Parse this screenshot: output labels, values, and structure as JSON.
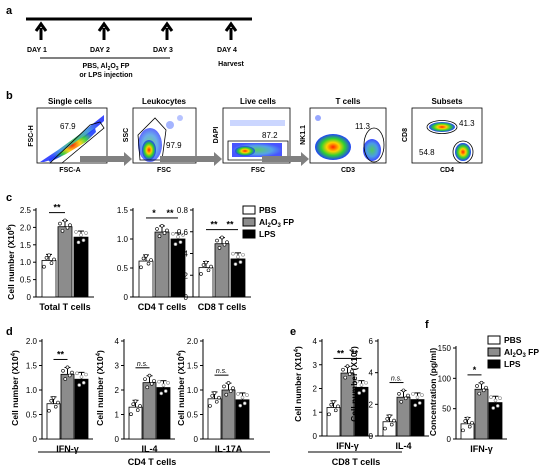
{
  "figure": {
    "panels": {
      "a": "a",
      "b": "b",
      "c": "c",
      "d": "d",
      "e": "e",
      "f": "f"
    },
    "timeline": {
      "days": [
        "DAY 1",
        "DAY 2",
        "DAY 3",
        "DAY 4"
      ],
      "injection_line1": "PBS, Al",
      "injection_sub": "2",
      "injection_mid": "O",
      "injection_sub2": "3",
      "injection_line1_end": " FP",
      "injection_line2": "or LPS injection",
      "harvest": "Harvest"
    },
    "gating": [
      {
        "title": "Single cells",
        "xaxis": "FSC-A",
        "yaxis": "FSC-H",
        "value": "67.9"
      },
      {
        "title": "Leukocytes",
        "xaxis": "FSC",
        "yaxis": "SSC",
        "value": "97.9"
      },
      {
        "title": "Live cells",
        "xaxis": "FSC",
        "yaxis": "DAPI",
        "value": "87.2"
      },
      {
        "title": "T cells",
        "xaxis": "CD3",
        "yaxis": "NK1.1",
        "value": "11.3"
      },
      {
        "title": "Subsets",
        "xaxis": "CD4",
        "yaxis": "CD8",
        "value_top": "41.3",
        "value_bottom": "54.8"
      }
    ],
    "legend": {
      "pbs": "PBS",
      "fp_pre": "Al",
      "fp_s1": "2",
      "fp_mid": "O",
      "fp_s2": "3",
      "fp_post": " FP",
      "lps": "LPS",
      "colors": {
        "pbs": "#ffffff",
        "fp": "#8c8c8c",
        "lps": "#000000"
      }
    },
    "sig": {
      "two": "**",
      "one": "*",
      "ns": "n.s."
    },
    "ylabels": {
      "cells_main": "Cell number (X10",
      "cells_exp": "6",
      "cells_sub_main": "Cell number (X10",
      "cells_sub_exp": "4",
      "cells_sub_suffix": ")",
      "conc": "Concentration (pg/ml)"
    },
    "group_labels": {
      "cd4": "CD4 T cells",
      "cd8": "CD8 T cells"
    }
  },
  "chart_data": [
    {
      "panel": "c",
      "type": "bar",
      "ylabel": "Cell number (X10^6)",
      "ylim": [
        0,
        2.5
      ],
      "yticks": [
        "0",
        "0.5",
        "1.0",
        "1.5",
        "2.0",
        "2.5"
      ],
      "categories": [
        "Total T cells"
      ],
      "series": [
        {
          "name": "PBS",
          "values": [
            1.05
          ]
        },
        {
          "name": "Al2O3 FP",
          "values": [
            2.02
          ]
        },
        {
          "name": "LPS",
          "values": [
            1.72
          ]
        }
      ],
      "sig": [
        "**"
      ]
    },
    {
      "panel": "c",
      "type": "bar",
      "ylim": [
        0,
        1.5
      ],
      "yticks": [
        "0",
        "0.5",
        "1.0",
        "1.5"
      ],
      "categories": [
        "CD4 T cells"
      ],
      "series": [
        {
          "name": "PBS",
          "values": [
            0.62
          ]
        },
        {
          "name": "Al2O3 FP",
          "values": [
            1.12
          ]
        },
        {
          "name": "LPS",
          "values": [
            1.0
          ]
        }
      ],
      "sig": [
        "*",
        "**"
      ]
    },
    {
      "panel": "c",
      "type": "bar",
      "ylim": [
        0,
        0.8
      ],
      "yticks": [
        "0",
        "0.2",
        "0.4",
        "0.6",
        "0.8"
      ],
      "categories": [
        "CD8 T cells"
      ],
      "series": [
        {
          "name": "PBS",
          "values": [
            0.27
          ]
        },
        {
          "name": "Al2O3 FP",
          "values": [
            0.49
          ]
        },
        {
          "name": "LPS",
          "values": [
            0.35
          ]
        }
      ],
      "sig": [
        "**",
        "**"
      ]
    },
    {
      "panel": "d",
      "type": "bar",
      "ylabel": "Cell number (X10^4)",
      "ylim": [
        0,
        2.0
      ],
      "yticks": [
        "0",
        "0.5",
        "1.0",
        "1.5",
        "2.0"
      ],
      "categories": [
        "IFN-γ"
      ],
      "series": [
        {
          "name": "PBS",
          "values": [
            0.72
          ]
        },
        {
          "name": "Al2O3 FP",
          "values": [
            1.32
          ]
        },
        {
          "name": "LPS",
          "values": [
            1.22
          ]
        }
      ],
      "sig": [
        "**"
      ]
    },
    {
      "panel": "d",
      "type": "bar",
      "ylabel": "Cell number (X10^4)",
      "ylim": [
        0,
        4
      ],
      "yticks": [
        "0",
        "1",
        "2",
        "3",
        "4"
      ],
      "categories": [
        "IL-4"
      ],
      "series": [
        {
          "name": "PBS",
          "values": [
            1.3
          ]
        },
        {
          "name": "Al2O3 FP",
          "values": [
            2.3
          ]
        },
        {
          "name": "LPS",
          "values": [
            2.1
          ]
        }
      ],
      "sig": [
        "n.s."
      ]
    },
    {
      "panel": "d",
      "type": "bar",
      "ylabel": "Cell number (X10^4)",
      "ylim": [
        0,
        2.0
      ],
      "yticks": [
        "0",
        "0.5",
        "1.0",
        "1.5",
        "2.0"
      ],
      "categories": [
        "IL-17A"
      ],
      "series": [
        {
          "name": "PBS",
          "values": [
            0.82
          ]
        },
        {
          "name": "Al2O3 FP",
          "values": [
            1.0
          ]
        },
        {
          "name": "LPS",
          "values": [
            0.8
          ]
        }
      ],
      "sig": [
        "n.s."
      ]
    },
    {
      "panel": "e",
      "type": "bar",
      "ylabel": "Cell number (X10^4)",
      "ylim": [
        0,
        4
      ],
      "yticks": [
        "0",
        "1",
        "2",
        "3",
        "4"
      ],
      "categories": [
        "IFN-γ"
      ],
      "series": [
        {
          "name": "PBS",
          "values": [
            1.2
          ]
        },
        {
          "name": "Al2O3 FP",
          "values": [
            2.65
          ]
        },
        {
          "name": "LPS",
          "values": [
            2.05
          ]
        }
      ],
      "sig": [
        "**",
        "**"
      ]
    },
    {
      "panel": "e",
      "type": "bar",
      "ylabel": "Cell number (X10^3)",
      "ylim": [
        0,
        6
      ],
      "yticks": [
        "0",
        "2",
        "4",
        "6"
      ],
      "categories": [
        "IL-4"
      ],
      "series": [
        {
          "name": "PBS",
          "values": [
            0.9
          ]
        },
        {
          "name": "Al2O3 FP",
          "values": [
            2.45
          ]
        },
        {
          "name": "LPS",
          "values": [
            2.3
          ]
        }
      ],
      "sig": [
        "n.s."
      ]
    },
    {
      "panel": "f",
      "type": "bar",
      "ylabel": "Concentration (pg/ml)",
      "ylim": [
        0,
        150
      ],
      "yticks": [
        "0",
        "50",
        "100",
        "150"
      ],
      "categories": [
        "IFN-γ"
      ],
      "series": [
        {
          "name": "PBS",
          "values": [
            25
          ]
        },
        {
          "name": "Al2O3 FP",
          "values": [
            82
          ]
        },
        {
          "name": "LPS",
          "values": [
            60
          ]
        }
      ],
      "sig": [
        "*"
      ]
    }
  ]
}
